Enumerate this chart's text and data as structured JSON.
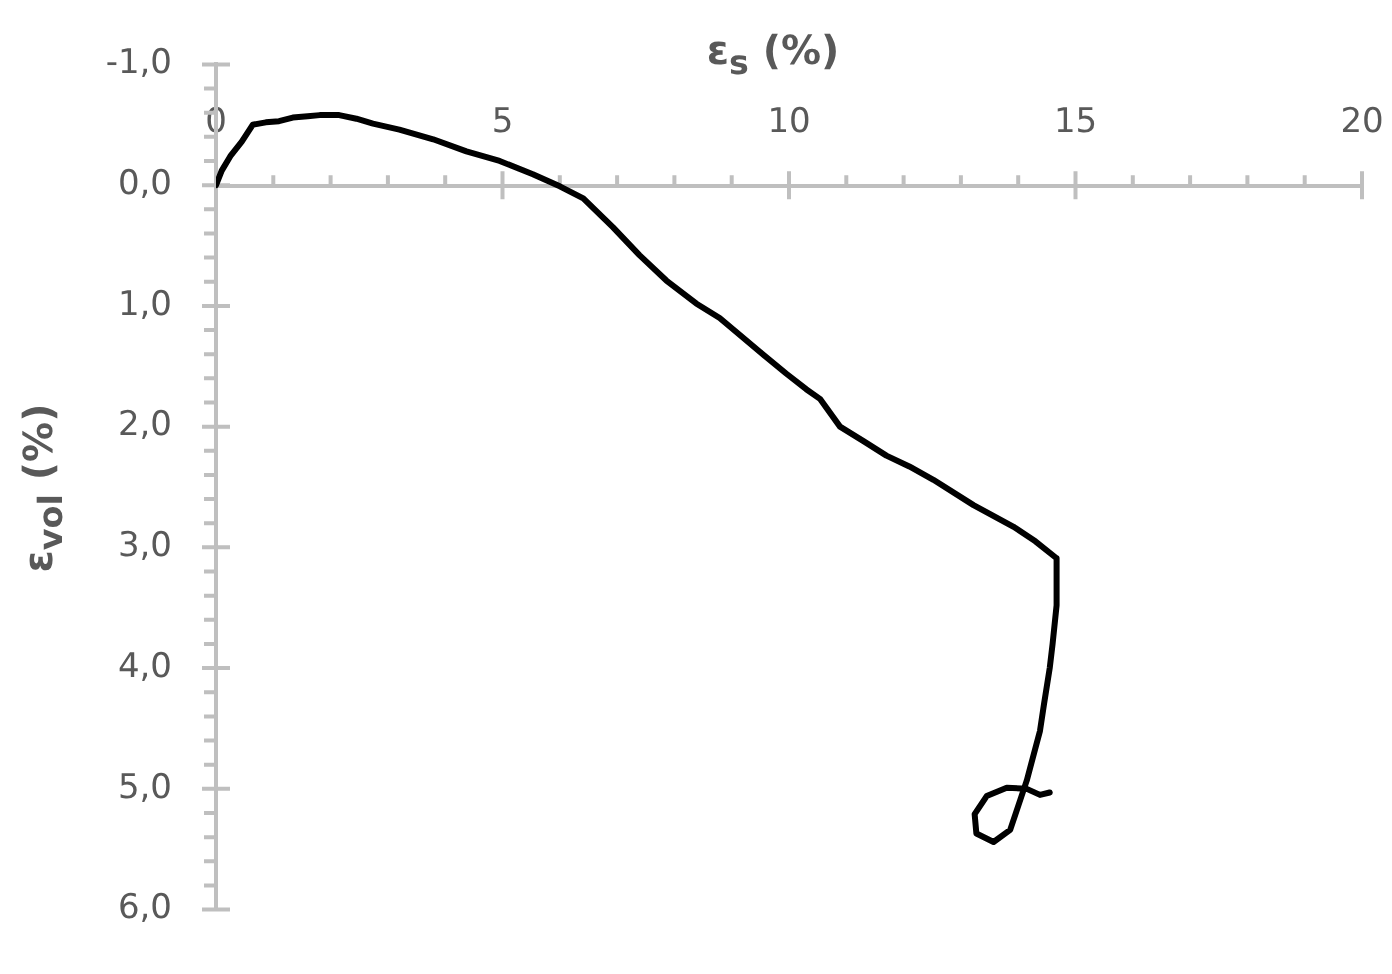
{
  "chart_data": {
    "type": "line",
    "xlabel": "ε$_{s}$ (%)",
    "ylabel": "ε$_{vol}$ (%)",
    "color": "#000000",
    "x": [
      0,
      0.1,
      0.25,
      0.45,
      0.64,
      0.87,
      1.1,
      1.34,
      1.6,
      1.81,
      2.15,
      2.45,
      2.74,
      3.2,
      3.79,
      4.37,
      4.95,
      5.53,
      6.0,
      6.41,
      6.93,
      7.39,
      7.86,
      8.38,
      8.79,
      9.49,
      9.95,
      10.3,
      10.54,
      10.89,
      11.3,
      11.7,
      12.1,
      12.52,
      13.22,
      13.92,
      14.3,
      14.67,
      14.67,
      14.6,
      14.55,
      14.45,
      14.38,
      14.15,
      13.86,
      13.57,
      13.27,
      13.24,
      13.45,
      13.8,
      14.15,
      14.38,
      14.55
    ],
    "values": [
      0,
      -0.12,
      -0.24,
      -0.36,
      -0.5,
      -0.52,
      -0.53,
      -0.56,
      -0.57,
      -0.58,
      -0.58,
      -0.55,
      -0.51,
      -0.46,
      -0.38,
      -0.28,
      -0.2,
      -0.09,
      0.01,
      0.11,
      0.35,
      0.58,
      0.79,
      0.98,
      1.1,
      1.38,
      1.56,
      1.69,
      1.77,
      2.0,
      2.12,
      2.24,
      2.33,
      2.44,
      2.65,
      2.83,
      2.95,
      3.09,
      3.48,
      3.8,
      4.0,
      4.3,
      4.52,
      4.93,
      5.34,
      5.44,
      5.37,
      5.21,
      5.06,
      4.99,
      5.0,
      5.05,
      5.03
    ],
    "xlim": [
      0,
      20
    ],
    "ylim": [
      6,
      -1
    ],
    "xticks": [
      0,
      {
        "value": 1,
        "label": null
      },
      {
        "value": 2,
        "label": null
      },
      {
        "value": 3,
        "label": null
      },
      {
        "value": 4,
        "label": null
      },
      5,
      {
        "value": 6,
        "label": null
      },
      {
        "value": 7,
        "label": null
      },
      {
        "value": 8,
        "label": null
      },
      {
        "value": 9,
        "label": null
      },
      10,
      {
        "value": 11,
        "label": null
      },
      {
        "value": 12,
        "label": null
      },
      {
        "value": 13,
        "label": null
      },
      {
        "value": 14,
        "label": null
      },
      15,
      {
        "value": 16,
        "label": null
      },
      {
        "value": 17,
        "label": null
      },
      {
        "value": 18,
        "label": null
      },
      {
        "value": 19,
        "label": null
      },
      20
    ],
    "yticks": [
      {
        "value": -1,
        "label": "-1,0"
      },
      {
        "value": -0.8,
        "label": null
      },
      {
        "value": -0.6,
        "label": null
      },
      {
        "value": -0.4,
        "label": null
      },
      {
        "value": -0.2,
        "label": null
      },
      {
        "value": 0,
        "label": "0,0"
      },
      {
        "value": 0.2,
        "label": null
      },
      {
        "value": 0.4,
        "label": null
      },
      {
        "value": 0.6,
        "label": null
      },
      {
        "value": 0.8,
        "label": null
      },
      {
        "value": 1,
        "label": "1,0"
      },
      {
        "value": 1.2,
        "label": null
      },
      {
        "value": 1.4,
        "label": null
      },
      {
        "value": 1.6,
        "label": null
      },
      {
        "value": 1.8,
        "label": null
      },
      {
        "value": 2,
        "label": "2,0"
      },
      {
        "value": 2.2,
        "label": null
      },
      {
        "value": 2.4,
        "label": null
      },
      {
        "value": 2.6,
        "label": null
      },
      {
        "value": 2.8,
        "label": null
      },
      {
        "value": 3,
        "label": "3,0"
      },
      {
        "value": 3.2,
        "label": null
      },
      {
        "value": 3.4,
        "label": null
      },
      {
        "value": 3.6,
        "label": null
      },
      {
        "value": 3.8,
        "label": null
      },
      {
        "value": 4,
        "label": "4,0"
      },
      {
        "value": 4.2,
        "label": null
      },
      {
        "value": 4.4,
        "label": null
      },
      {
        "value": 4.6,
        "label": null
      },
      {
        "value": 4.8,
        "label": null
      },
      {
        "value": 5,
        "label": "5,0"
      },
      {
        "value": 5.2,
        "label": null
      },
      {
        "value": 5.4,
        "label": null
      },
      {
        "value": 5.6,
        "label": null
      },
      {
        "value": 5.8,
        "label": null
      },
      {
        "value": 6,
        "label": "6,0"
      }
    ]
  }
}
